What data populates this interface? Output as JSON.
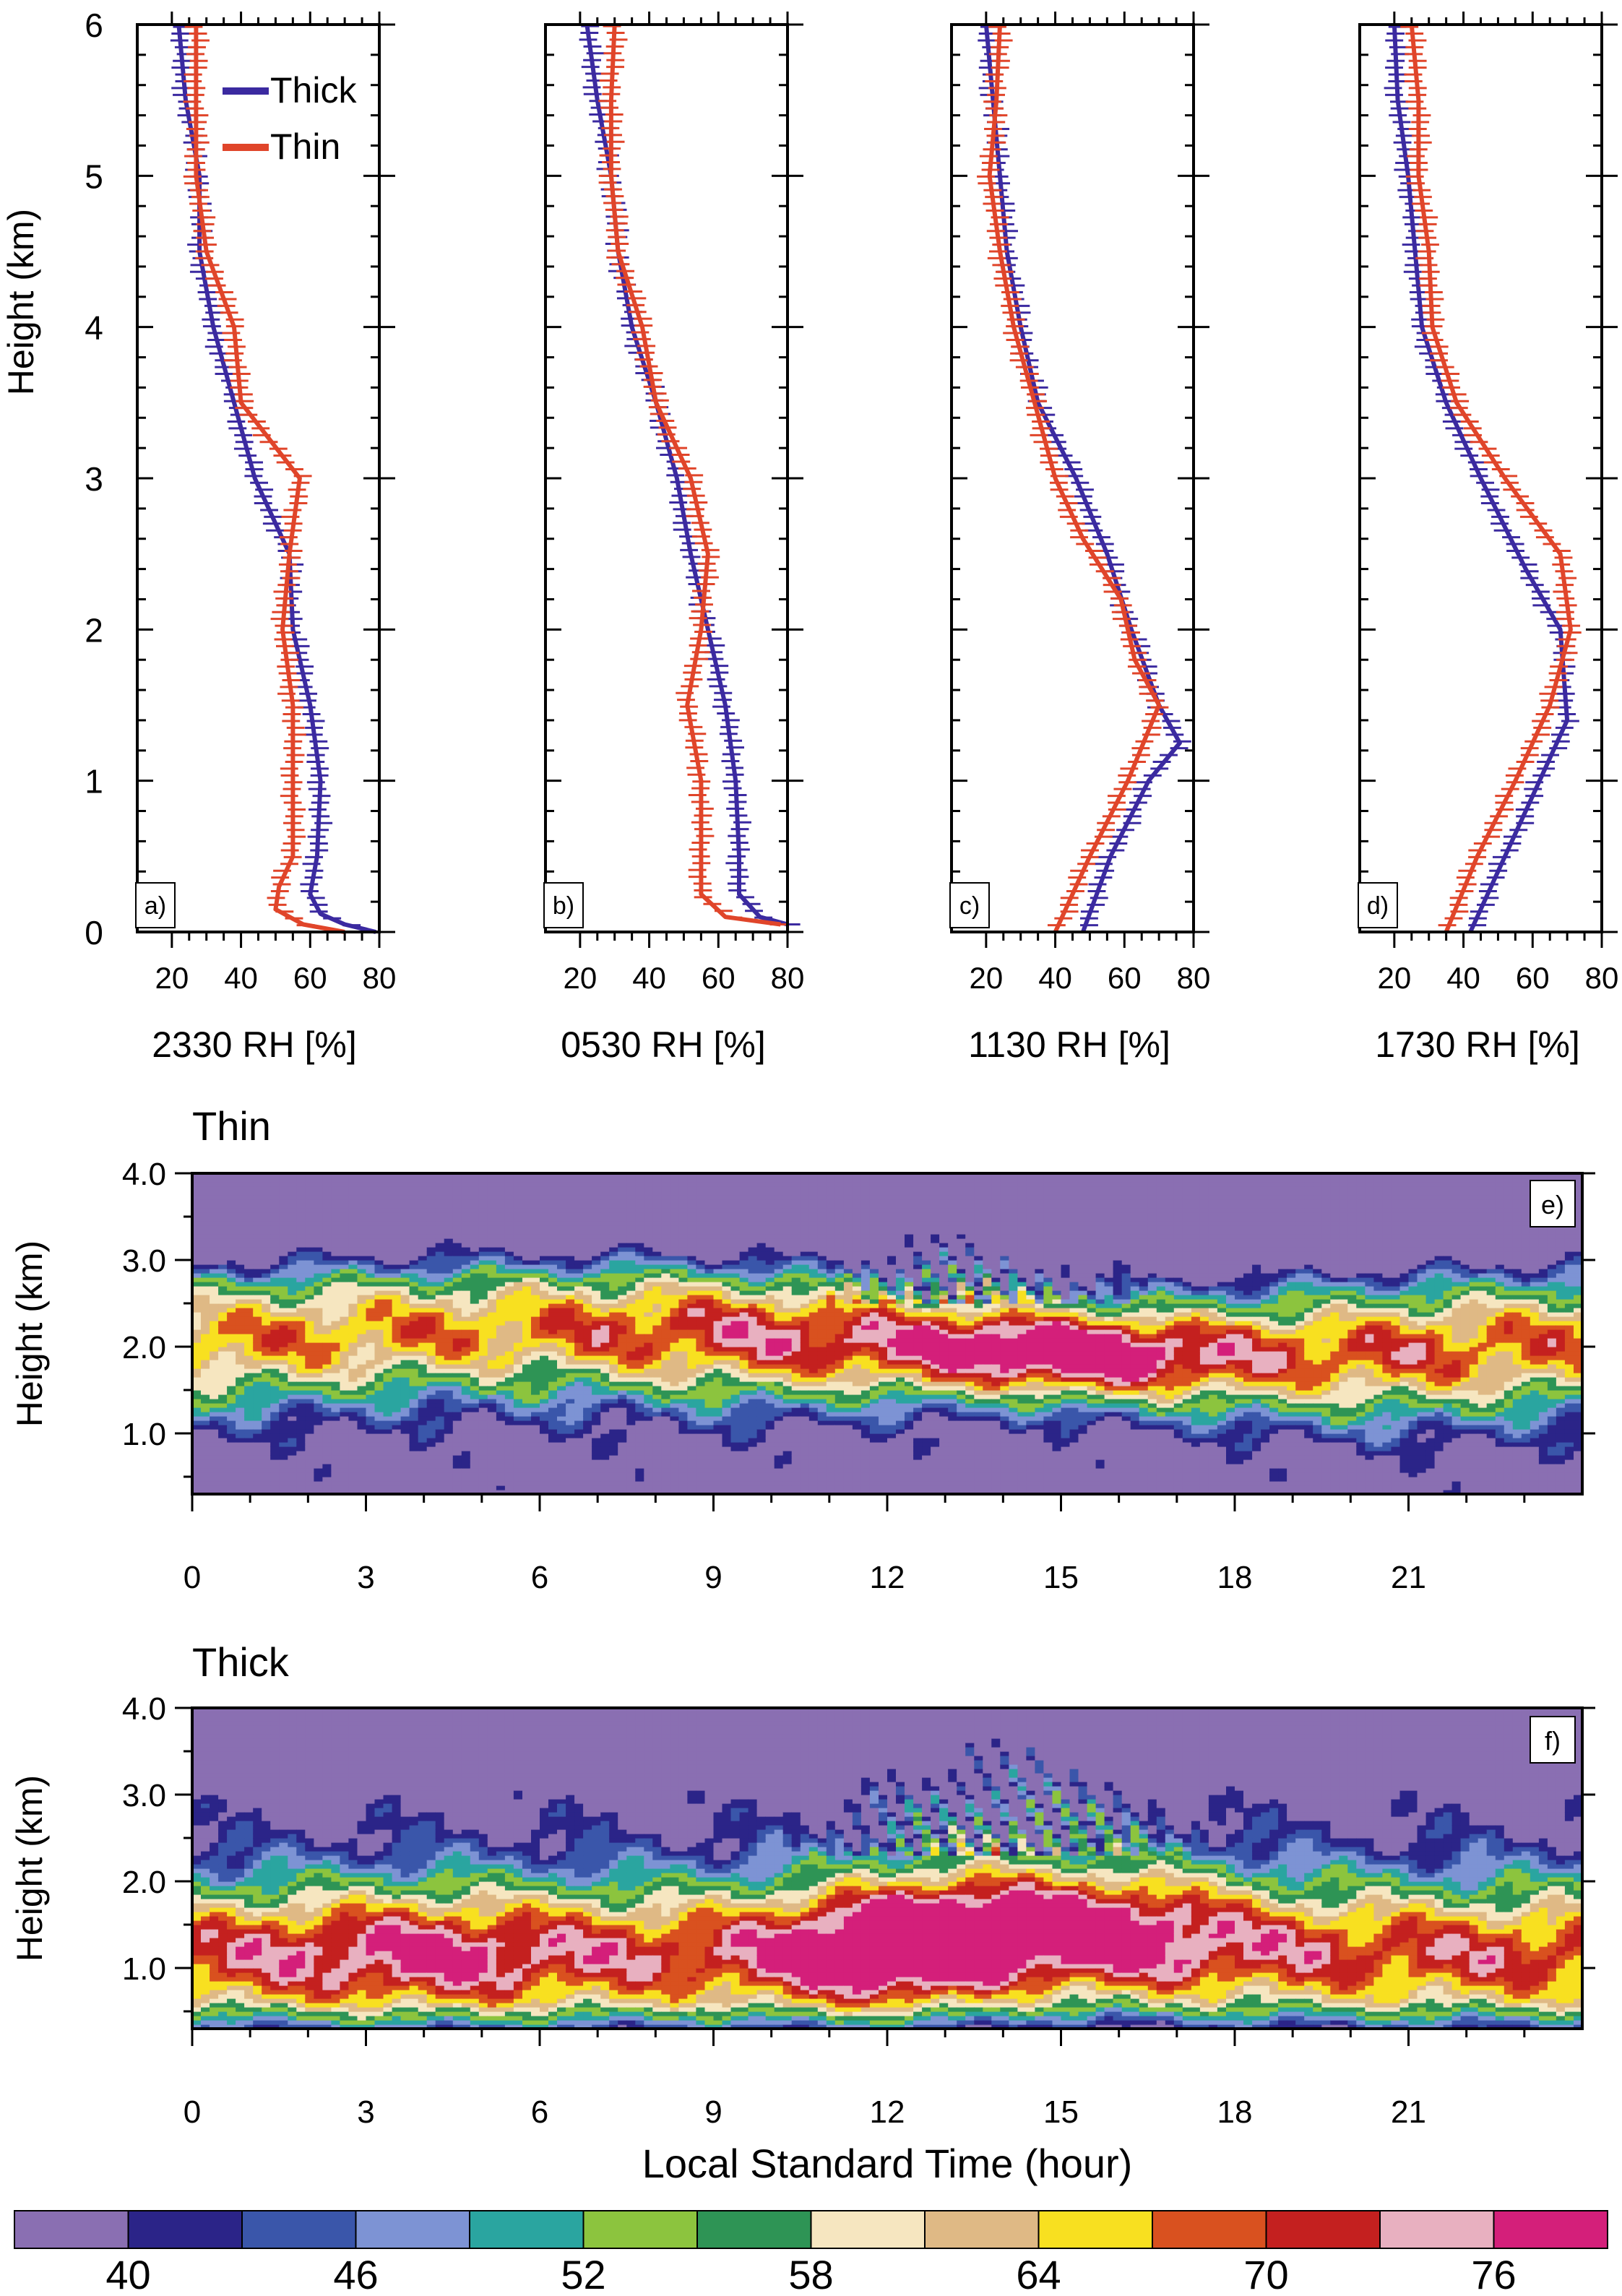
{
  "colors": {
    "thick": "#3b2aa0",
    "thin": "#e0452a",
    "rh_levels": [
      "#8a6fb2",
      "#2b2488",
      "#3a56aa",
      "#7d93d4",
      "#2aa5a0",
      "#8cc43e",
      "#2e9455",
      "#f6e6c0",
      "#dfb985",
      "#f8e020",
      "#d9511f",
      "#c4201f",
      "#e8b0c0",
      "#d41f7a"
    ]
  },
  "chart_data": [
    {
      "type": "line",
      "panel": "a)",
      "xlabel": "2330 RH [%]",
      "ylabel": "Height (km)",
      "xticks": [
        20,
        40,
        60,
        80
      ],
      "yticks": [
        0,
        1,
        2,
        3,
        4,
        5,
        6
      ],
      "xlim": [
        10,
        80
      ],
      "ylim": [
        0,
        6
      ],
      "legend": {
        "placement": "top-right",
        "entries": [
          "Thick",
          "Thin"
        ]
      },
      "series": [
        {
          "name": "Thick",
          "points": [
            [
              79,
              0.0
            ],
            [
              70,
              0.05
            ],
            [
              63,
              0.12
            ],
            [
              60,
              0.25
            ],
            [
              62,
              0.5
            ],
            [
              63,
              1.0
            ],
            [
              60,
              1.5
            ],
            [
              55,
              2.0
            ],
            [
              54,
              2.5
            ],
            [
              44,
              3.0
            ],
            [
              38,
              3.5
            ],
            [
              32,
              4.0
            ],
            [
              28,
              4.5
            ],
            [
              28,
              5.0
            ],
            [
              24,
              5.5
            ],
            [
              22,
              6.0
            ]
          ]
        },
        {
          "name": "Thin",
          "points": [
            [
              70,
              0.0
            ],
            [
              58,
              0.05
            ],
            [
              50,
              0.15
            ],
            [
              51,
              0.3
            ],
            [
              55,
              0.5
            ],
            [
              55,
              1.0
            ],
            [
              55,
              1.5
            ],
            [
              52,
              2.0
            ],
            [
              54,
              2.5
            ],
            [
              57,
              3.0
            ],
            [
              40,
              3.5
            ],
            [
              38,
              4.0
            ],
            [
              30,
              4.5
            ],
            [
              27,
              5.0
            ],
            [
              27,
              5.5
            ],
            [
              27,
              6.0
            ]
          ]
        }
      ]
    },
    {
      "type": "line",
      "panel": "b)",
      "xlabel": "0530 RH [%]",
      "ylabel": "",
      "xticks": [
        20,
        40,
        60,
        80
      ],
      "yticks": [
        0,
        1,
        2,
        3,
        4,
        5,
        6
      ],
      "xlim": [
        10,
        80
      ],
      "ylim": [
        0,
        6
      ],
      "series": [
        {
          "name": "Thick",
          "points": [
            [
              80,
              0.05
            ],
            [
              72,
              0.1
            ],
            [
              66,
              0.25
            ],
            [
              66,
              0.5
            ],
            [
              65,
              1.0
            ],
            [
              62,
              1.5
            ],
            [
              57,
              2.0
            ],
            [
              52,
              2.5
            ],
            [
              48,
              3.0
            ],
            [
              42,
              3.5
            ],
            [
              35,
              4.0
            ],
            [
              31,
              4.5
            ],
            [
              29,
              5.0
            ],
            [
              25,
              5.5
            ],
            [
              22,
              6.0
            ]
          ]
        },
        {
          "name": "Thin",
          "points": [
            [
              78,
              0.05
            ],
            [
              62,
              0.1
            ],
            [
              55,
              0.25
            ],
            [
              55,
              0.5
            ],
            [
              55,
              1.0
            ],
            [
              51,
              1.5
            ],
            [
              55,
              2.0
            ],
            [
              57,
              2.5
            ],
            [
              52,
              3.0
            ],
            [
              42,
              3.5
            ],
            [
              38,
              4.0
            ],
            [
              31,
              4.5
            ],
            [
              29,
              5.0
            ],
            [
              29,
              5.5
            ],
            [
              30,
              6.0
            ]
          ]
        }
      ]
    },
    {
      "type": "line",
      "panel": "c)",
      "xlabel": "1130 RH [%]",
      "ylabel": "",
      "xticks": [
        20,
        40,
        60,
        80
      ],
      "yticks": [
        0,
        1,
        2,
        3,
        4,
        5,
        6
      ],
      "xlim": [
        10,
        80
      ],
      "ylim": [
        0,
        6
      ],
      "series": [
        {
          "name": "Thick",
          "points": [
            [
              48,
              0.0
            ],
            [
              56,
              0.5
            ],
            [
              67,
              1.0
            ],
            [
              76,
              1.25
            ],
            [
              70,
              1.5
            ],
            [
              62,
              2.0
            ],
            [
              55,
              2.5
            ],
            [
              46,
              3.0
            ],
            [
              35,
              3.5
            ],
            [
              30,
              4.0
            ],
            [
              26,
              4.5
            ],
            [
              24,
              5.0
            ],
            [
              22,
              5.5
            ],
            [
              20,
              6.0
            ]
          ]
        },
        {
          "name": "Thin",
          "points": [
            [
              40,
              0.0
            ],
            [
              50,
              0.5
            ],
            [
              61,
              1.0
            ],
            [
              70,
              1.5
            ],
            [
              63,
              1.8
            ],
            [
              59,
              2.2
            ],
            [
              48,
              2.6
            ],
            [
              40,
              3.0
            ],
            [
              34,
              3.5
            ],
            [
              28,
              4.0
            ],
            [
              24,
              4.5
            ],
            [
              21,
              5.0
            ],
            [
              23,
              5.5
            ],
            [
              24,
              6.0
            ]
          ]
        }
      ]
    },
    {
      "type": "line",
      "panel": "d)",
      "xlabel": "1730 RH [%]",
      "ylabel": "",
      "xticks": [
        20,
        40,
        60,
        80
      ],
      "yticks": [
        0,
        1,
        2,
        3,
        4,
        5,
        6
      ],
      "xlim": [
        10,
        80
      ],
      "ylim": [
        0,
        6
      ],
      "series": [
        {
          "name": "Thick",
          "points": [
            [
              42,
              0.0
            ],
            [
              52,
              0.5
            ],
            [
              62,
              1.0
            ],
            [
              70,
              1.4
            ],
            [
              68,
              2.0
            ],
            [
              58,
              2.4
            ],
            [
              45,
              3.0
            ],
            [
              35,
              3.5
            ],
            [
              28,
              4.0
            ],
            [
              26,
              4.5
            ],
            [
              24,
              5.0
            ],
            [
              21,
              5.5
            ],
            [
              20,
              6.0
            ]
          ]
        },
        {
          "name": "Thin",
          "points": [
            [
              35,
              0.0
            ],
            [
              44,
              0.5
            ],
            [
              55,
              1.0
            ],
            [
              65,
              1.5
            ],
            [
              71,
              2.0
            ],
            [
              68,
              2.5
            ],
            [
              52,
              3.0
            ],
            [
              38,
              3.5
            ],
            [
              31,
              4.0
            ],
            [
              30,
              4.5
            ],
            [
              27,
              5.0
            ],
            [
              27,
              5.5
            ],
            [
              25,
              6.0
            ]
          ]
        }
      ]
    },
    {
      "type": "heatmap",
      "panel": "e)",
      "title": "Thin",
      "ylabel": "Height (km)",
      "xticks": [
        0,
        3,
        6,
        9,
        12,
        15,
        18,
        21
      ],
      "yticks": [
        "1.0",
        "2.0",
        "3.0",
        "4.0"
      ],
      "xlim": [
        0,
        24
      ],
      "ylim": [
        0.3,
        4.0
      ],
      "features": [
        {
          "t": 0,
          "h": 2.2,
          "rh": 61
        },
        {
          "t": 6,
          "h": 2.2,
          "rh": 60
        },
        {
          "t": 9,
          "h": 1.7,
          "rh": 62
        },
        {
          "t": 12,
          "h": 1.8,
          "rh": 67
        },
        {
          "t": 15,
          "h": 2.1,
          "rh": 71
        },
        {
          "t": 18,
          "h": 2.2,
          "rh": 64
        },
        {
          "t": 22,
          "h": 2.0,
          "rh": 63
        }
      ]
    },
    {
      "type": "heatmap",
      "panel": "f)",
      "title": "Thick",
      "ylabel": "Height (km)",
      "xlabel": "Local Standard Time (hour)",
      "xticks": [
        0,
        3,
        6,
        9,
        12,
        15,
        18,
        21
      ],
      "yticks": [
        "1.0",
        "2.0",
        "3.0",
        "4.0"
      ],
      "xlim": [
        0,
        24
      ],
      "ylim": [
        0.3,
        4.0
      ],
      "features": [
        {
          "t": 0,
          "h": 1.2,
          "rh": 64
        },
        {
          "t": 4,
          "h": 1.0,
          "rh": 68
        },
        {
          "t": 9,
          "h": 1.0,
          "rh": 64
        },
        {
          "t": 12,
          "h": 1.1,
          "rh": 74
        },
        {
          "t": 15,
          "h": 1.4,
          "rh": 71
        },
        {
          "t": 18,
          "h": 1.4,
          "rh": 66
        },
        {
          "t": 22,
          "h": 1.3,
          "rh": 64
        }
      ]
    }
  ],
  "colorbar": {
    "labels": [
      "40",
      "46",
      "52",
      "58",
      "64",
      "70",
      "76"
    ],
    "levels": [
      40,
      42,
      44,
      46,
      48,
      50,
      52,
      54,
      56,
      58,
      60,
      62,
      64,
      66,
      68,
      70,
      72,
      74,
      76,
      78
    ]
  }
}
